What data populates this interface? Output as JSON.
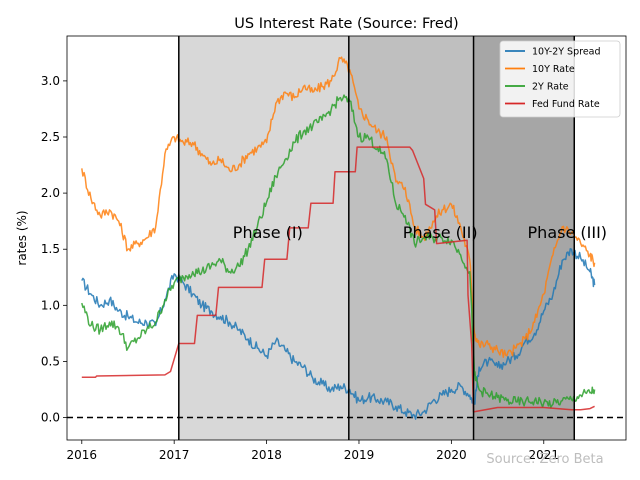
{
  "chart_data": {
    "type": "line",
    "title": "US Interest Rate (Source: Fred)",
    "xlabel": "",
    "ylabel": "rates (%)",
    "xlim": [
      2015.84,
      2021.89
    ],
    "ylim": [
      -0.2,
      3.4
    ],
    "x_ticks": [
      2016,
      2017,
      2018,
      2019,
      2020,
      2021
    ],
    "x_tick_labels": [
      "2016",
      "2017",
      "2018",
      "2019",
      "2020",
      "2021"
    ],
    "y_ticks": [
      0.0,
      0.5,
      1.0,
      1.5,
      2.0,
      2.5,
      3.0
    ],
    "y_tick_labels": [
      "0.0",
      "0.5",
      "1.0",
      "1.5",
      "2.0",
      "2.5",
      "3.0"
    ],
    "grid": false,
    "legend_position": "top-right",
    "reference_lines": [
      {
        "value": 0,
        "orientation": "horizontal",
        "style": "dashed",
        "color": "#000000"
      }
    ],
    "period_lines": [
      2017.05,
      2018.89,
      2020.24,
      2021.33
    ],
    "phases": [
      {
        "label": "Phase (I)",
        "start": 2017.05,
        "end": 2018.89,
        "shade": "#d8d8d8"
      },
      {
        "label": "Phase (II)",
        "start": 2018.89,
        "end": 2020.24,
        "shade": "#bfbfbf"
      },
      {
        "label": "Phase (III)",
        "start": 2020.24,
        "end": 2021.33,
        "shade": "#a6a6a6"
      }
    ],
    "series": [
      {
        "name": "10Y-2Y Spread",
        "color": "#1f77b4",
        "x": [
          2016.0,
          2016.1,
          2016.2,
          2016.3,
          2016.4,
          2016.5,
          2016.6,
          2016.7,
          2016.8,
          2016.9,
          2017.0,
          2017.1,
          2017.2,
          2017.3,
          2017.4,
          2017.5,
          2017.6,
          2017.7,
          2017.8,
          2017.9,
          2018.0,
          2018.1,
          2018.2,
          2018.3,
          2018.4,
          2018.5,
          2018.6,
          2018.7,
          2018.8,
          2018.9,
          2019.0,
          2019.1,
          2019.2,
          2019.3,
          2019.4,
          2019.5,
          2019.6,
          2019.7,
          2019.8,
          2019.9,
          2020.0,
          2020.1,
          2020.2,
          2020.25,
          2020.3,
          2020.4,
          2020.5,
          2020.6,
          2020.7,
          2020.8,
          2020.9,
          2021.0,
          2021.1,
          2021.2,
          2021.3,
          2021.4,
          2021.5,
          2021.55
        ],
        "values": [
          1.22,
          1.1,
          1.0,
          1.05,
          0.95,
          0.9,
          0.85,
          0.85,
          0.82,
          1.05,
          1.28,
          1.2,
          1.1,
          1.0,
          0.95,
          0.9,
          0.85,
          0.78,
          0.7,
          0.62,
          0.55,
          0.68,
          0.6,
          0.5,
          0.45,
          0.35,
          0.3,
          0.25,
          0.28,
          0.25,
          0.15,
          0.18,
          0.16,
          0.14,
          0.1,
          0.05,
          0.02,
          0.05,
          0.15,
          0.2,
          0.25,
          0.28,
          0.2,
          0.12,
          0.45,
          0.5,
          0.45,
          0.5,
          0.55,
          0.68,
          0.75,
          0.95,
          1.1,
          1.4,
          1.5,
          1.42,
          1.3,
          1.18
        ]
      },
      {
        "name": "10Y Rate",
        "color": "#ff7f0e",
        "x": [
          2016.0,
          2016.1,
          2016.2,
          2016.3,
          2016.4,
          2016.5,
          2016.6,
          2016.7,
          2016.8,
          2016.9,
          2017.0,
          2017.1,
          2017.2,
          2017.3,
          2017.4,
          2017.5,
          2017.6,
          2017.7,
          2017.8,
          2017.9,
          2018.0,
          2018.1,
          2018.2,
          2018.3,
          2018.4,
          2018.5,
          2018.6,
          2018.7,
          2018.8,
          2018.9,
          2019.0,
          2019.1,
          2019.2,
          2019.3,
          2019.4,
          2019.5,
          2019.6,
          2019.7,
          2019.8,
          2019.9,
          2020.0,
          2020.1,
          2020.2,
          2020.25,
          2020.3,
          2020.4,
          2020.5,
          2020.6,
          2020.7,
          2020.8,
          2020.9,
          2021.0,
          2021.1,
          2021.2,
          2021.3,
          2021.4,
          2021.5,
          2021.55
        ],
        "values": [
          2.22,
          1.95,
          1.8,
          1.85,
          1.75,
          1.5,
          1.55,
          1.6,
          1.7,
          2.35,
          2.5,
          2.45,
          2.45,
          2.35,
          2.25,
          2.3,
          2.2,
          2.25,
          2.35,
          2.4,
          2.45,
          2.8,
          2.9,
          2.85,
          2.95,
          2.9,
          2.95,
          3.0,
          3.2,
          3.1,
          2.75,
          2.65,
          2.55,
          2.5,
          2.1,
          2.05,
          1.7,
          1.6,
          1.75,
          1.85,
          1.9,
          1.7,
          1.4,
          0.75,
          0.65,
          0.65,
          0.6,
          0.55,
          0.62,
          0.7,
          0.85,
          1.1,
          1.45,
          1.7,
          1.65,
          1.55,
          1.45,
          1.38
        ]
      },
      {
        "name": "2Y Rate",
        "color": "#2ca02c",
        "x": [
          2016.0,
          2016.1,
          2016.2,
          2016.3,
          2016.4,
          2016.5,
          2016.6,
          2016.7,
          2016.8,
          2016.9,
          2017.0,
          2017.1,
          2017.2,
          2017.3,
          2017.4,
          2017.5,
          2017.6,
          2017.7,
          2017.8,
          2017.9,
          2018.0,
          2018.1,
          2018.2,
          2018.3,
          2018.4,
          2018.5,
          2018.6,
          2018.7,
          2018.8,
          2018.9,
          2019.0,
          2019.1,
          2019.2,
          2019.3,
          2019.4,
          2019.5,
          2019.6,
          2019.7,
          2019.8,
          2019.9,
          2020.0,
          2020.1,
          2020.2,
          2020.25,
          2020.3,
          2020.4,
          2020.5,
          2020.6,
          2020.7,
          2020.8,
          2020.9,
          2021.0,
          2021.1,
          2021.2,
          2021.3,
          2021.4,
          2021.5,
          2021.55
        ],
        "values": [
          1.02,
          0.82,
          0.78,
          0.85,
          0.8,
          0.62,
          0.7,
          0.78,
          0.85,
          1.05,
          1.2,
          1.25,
          1.3,
          1.3,
          1.35,
          1.4,
          1.3,
          1.35,
          1.5,
          1.7,
          1.92,
          2.15,
          2.3,
          2.45,
          2.55,
          2.6,
          2.65,
          2.75,
          2.85,
          2.82,
          2.5,
          2.5,
          2.4,
          2.3,
          1.9,
          1.8,
          1.55,
          1.6,
          1.6,
          1.6,
          1.58,
          1.45,
          1.3,
          0.38,
          0.25,
          0.2,
          0.18,
          0.15,
          0.14,
          0.14,
          0.15,
          0.13,
          0.12,
          0.15,
          0.16,
          0.2,
          0.22,
          0.25
        ]
      },
      {
        "name": "Fed Fund Rate",
        "color": "#d62728",
        "x": [
          2016.0,
          2016.15,
          2016.16,
          2016.9,
          2016.96,
          2017.05,
          2017.22,
          2017.25,
          2017.45,
          2017.48,
          2017.95,
          2017.98,
          2018.22,
          2018.25,
          2018.45,
          2018.48,
          2018.72,
          2018.74,
          2018.96,
          2018.98,
          2019.55,
          2019.58,
          2019.7,
          2019.72,
          2019.82,
          2019.84,
          2020.17,
          2020.18,
          2020.22,
          2020.24,
          2020.5,
          2021.0,
          2021.3,
          2021.4,
          2021.5,
          2021.55
        ],
        "values": [
          0.36,
          0.36,
          0.37,
          0.38,
          0.41,
          0.66,
          0.66,
          0.91,
          0.91,
          1.16,
          1.16,
          1.41,
          1.41,
          1.69,
          1.69,
          1.91,
          1.91,
          2.19,
          2.19,
          2.41,
          2.41,
          2.38,
          2.13,
          1.9,
          1.85,
          1.55,
          1.58,
          1.09,
          0.65,
          0.05,
          0.09,
          0.09,
          0.07,
          0.07,
          0.08,
          0.1
        ]
      }
    ]
  },
  "watermark": "Source: Zero Beta"
}
